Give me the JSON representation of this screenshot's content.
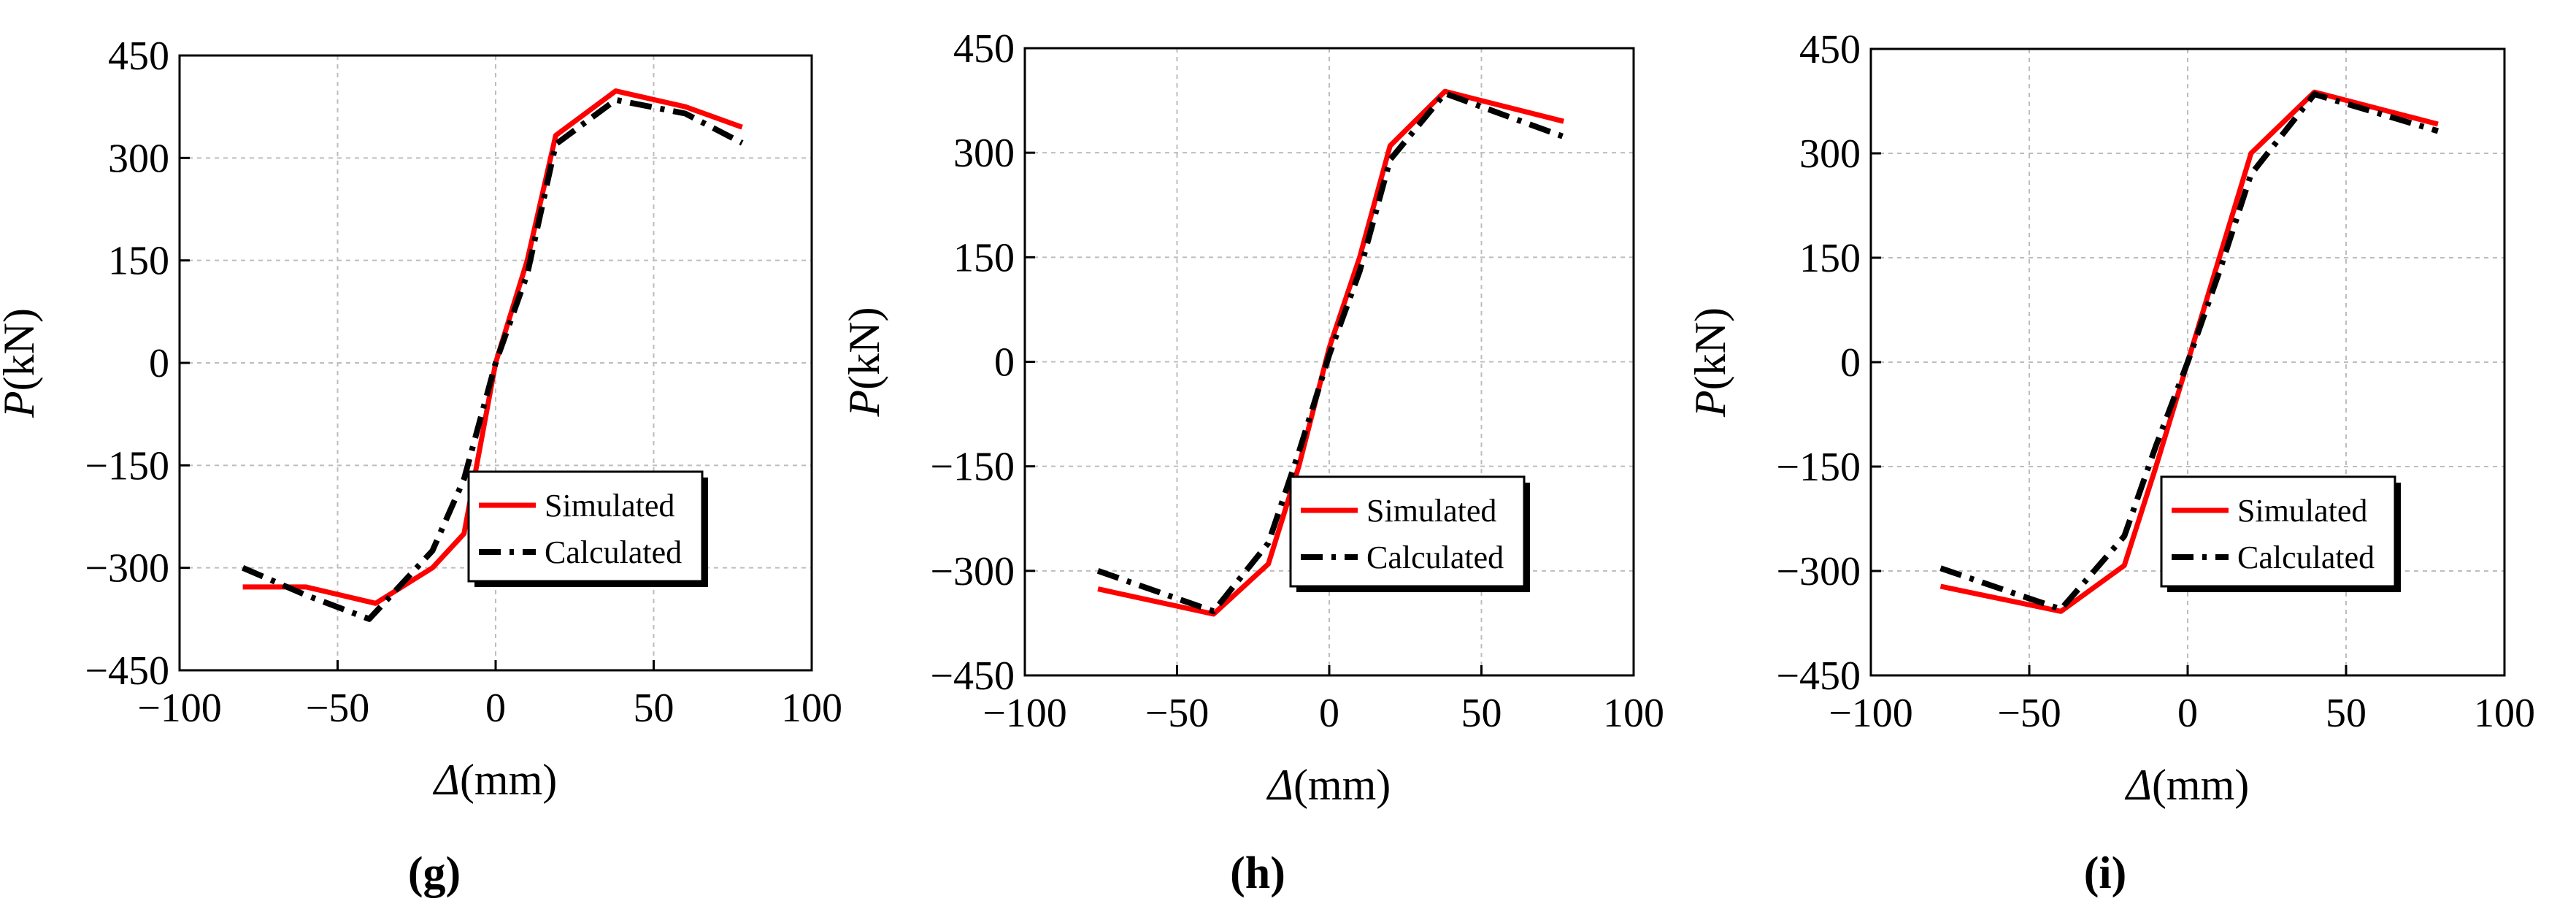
{
  "chart_data": [
    {
      "type": "line",
      "panel_label": "(g)",
      "xlabel_symbol": "Δ",
      "xlabel_unit": "(mm)",
      "ylabel_symbol": "P",
      "ylabel_unit": "(kN)",
      "xlim": [
        -100,
        100
      ],
      "ylim": [
        -450,
        450
      ],
      "xticks": [
        -100,
        -50,
        0,
        50,
        100
      ],
      "yticks": [
        -450,
        -300,
        -150,
        0,
        150,
        300,
        450
      ],
      "grid": true,
      "legend_position": "bottom-right",
      "series": [
        {
          "name": "Simulated",
          "color": "#ff0000",
          "style": "solid",
          "x": [
            -80,
            -60,
            -38,
            -20,
            -10,
            0,
            10,
            19,
            38,
            60,
            78
          ],
          "y": [
            -328,
            -328,
            -352,
            -300,
            -250,
            0,
            150,
            333,
            398,
            375,
            345
          ]
        },
        {
          "name": "Calculated",
          "color": "#000000",
          "style": "dashdot",
          "x": [
            -80,
            -60,
            -40,
            -20,
            -10,
            0,
            10,
            19,
            38,
            60,
            78
          ],
          "y": [
            -300,
            -340,
            -375,
            -275,
            -170,
            0,
            130,
            320,
            385,
            365,
            322
          ]
        }
      ]
    },
    {
      "type": "line",
      "panel_label": "(h)",
      "xlabel_symbol": "Δ",
      "xlabel_unit": "(mm)",
      "ylabel_symbol": "P",
      "ylabel_unit": "(kN)",
      "xlim": [
        -100,
        100
      ],
      "ylim": [
        -450,
        450
      ],
      "xticks": [
        -100,
        -50,
        0,
        50,
        100
      ],
      "yticks": [
        -450,
        -300,
        -150,
        0,
        150,
        300,
        450
      ],
      "grid": true,
      "legend_position": "bottom-right",
      "series": [
        {
          "name": "Simulated",
          "color": "#ff0000",
          "style": "solid",
          "x": [
            -76,
            -38,
            -20,
            -10,
            0,
            10,
            20,
            38,
            77
          ],
          "y": [
            -326,
            -362,
            -290,
            -150,
            20,
            150,
            310,
            388,
            345
          ]
        },
        {
          "name": "Calculated",
          "color": "#000000",
          "style": "dashdot",
          "x": [
            -76,
            -38,
            -20,
            -10,
            0,
            10,
            20,
            38,
            77
          ],
          "y": [
            -300,
            -358,
            -260,
            -130,
            10,
            130,
            290,
            385,
            323
          ]
        }
      ]
    },
    {
      "type": "line",
      "panel_label": "(i)",
      "xlabel_symbol": "Δ",
      "xlabel_unit": "(mm)",
      "ylabel_symbol": "P",
      "ylabel_unit": "(kN)",
      "xlim": [
        -100,
        100
      ],
      "ylim": [
        -450,
        450
      ],
      "xticks": [
        -100,
        -50,
        0,
        50,
        100
      ],
      "yticks": [
        -450,
        -300,
        -150,
        0,
        150,
        300,
        450
      ],
      "grid": true,
      "legend_position": "bottom-right",
      "series": [
        {
          "name": "Simulated",
          "color": "#ff0000",
          "style": "solid",
          "x": [
            -78,
            -40,
            -20,
            -10,
            0,
            10,
            20,
            40,
            79
          ],
          "y": [
            -322,
            -358,
            -292,
            -150,
            0,
            150,
            300,
            388,
            342
          ]
        },
        {
          "name": "Calculated",
          "color": "#000000",
          "style": "dashdot",
          "x": [
            -78,
            -40,
            -20,
            -10,
            0,
            10,
            20,
            40,
            79
          ],
          "y": [
            -296,
            -355,
            -250,
            -120,
            0,
            130,
            270,
            385,
            332
          ]
        }
      ]
    }
  ]
}
